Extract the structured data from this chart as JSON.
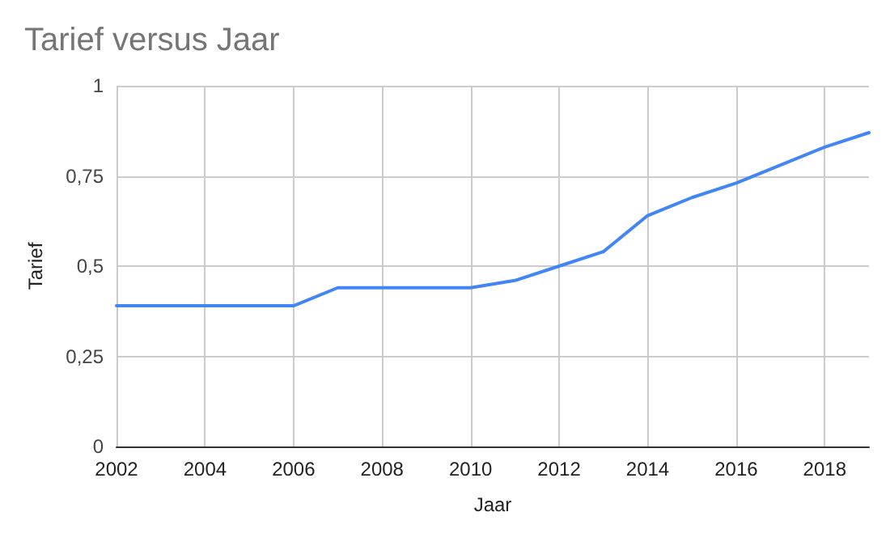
{
  "chart_data": {
    "type": "line",
    "title": "Tarief versus Jaar",
    "xlabel": "Jaar",
    "ylabel": "Tarief",
    "x": [
      2002,
      2003,
      2004,
      2005,
      2006,
      2007,
      2008,
      2009,
      2010,
      2011,
      2012,
      2013,
      2014,
      2015,
      2016,
      2017,
      2018,
      2019
    ],
    "series": [
      {
        "color": "#4285f4",
        "values": [
          0.39,
          0.39,
          0.39,
          0.39,
          0.39,
          0.44,
          0.44,
          0.44,
          0.44,
          0.46,
          0.5,
          0.54,
          0.64,
          0.69,
          0.73,
          0.78,
          0.83,
          0.87
        ]
      }
    ],
    "xlim": [
      2002,
      2019
    ],
    "xticks": [
      2002,
      2004,
      2006,
      2008,
      2010,
      2012,
      2014,
      2016,
      2018
    ],
    "ylim": [
      0,
      1
    ],
    "yticks": [
      {
        "value": 0,
        "label": "0"
      },
      {
        "value": 0.25,
        "label": "0,25"
      },
      {
        "value": 0.5,
        "label": "0,5"
      },
      {
        "value": 0.75,
        "label": "0,75"
      },
      {
        "value": 1,
        "label": "1"
      }
    ],
    "grid": true,
    "marker": "none",
    "line_style": "solid"
  }
}
